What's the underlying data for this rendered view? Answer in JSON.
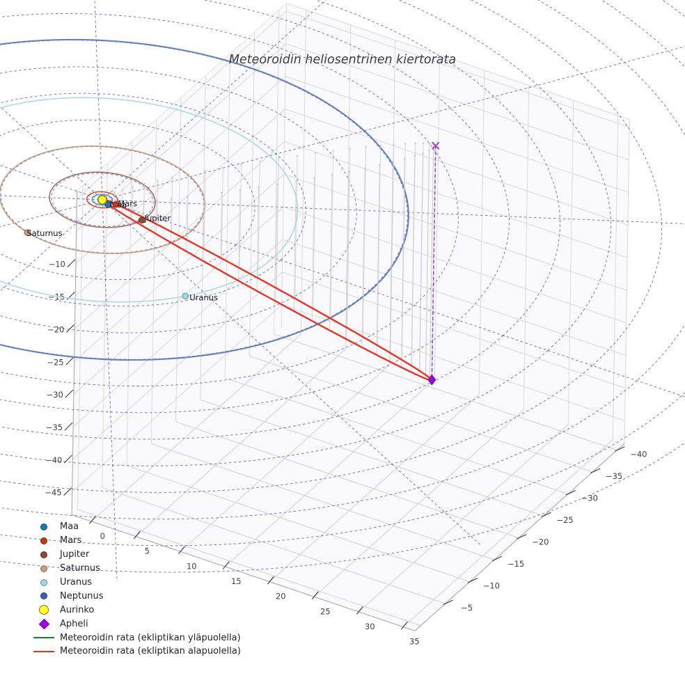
{
  "chart_data": {
    "type": "scatter",
    "projection": "3d",
    "title": "Meteoroidin heliosentrinen kiertorata",
    "axes": {
      "x_ticks": [
        0,
        5,
        10,
        15,
        20,
        25,
        30,
        35
      ],
      "y_ticks": [
        -5,
        -10,
        -15,
        -20,
        -25,
        -30,
        -35,
        -40
      ],
      "z_ticks": [
        -10,
        -15,
        -20,
        -25,
        -30,
        -35,
        -40,
        -45
      ],
      "tick_color": "#3d3d3d",
      "grid": "on"
    },
    "ecliptic_grid": {
      "style": "dashed",
      "line_color": "#4646cf",
      "radii_au": [
        5,
        10,
        15,
        20,
        25,
        30,
        35,
        40,
        45,
        50,
        55,
        60,
        65,
        70
      ],
      "ray_count": 12
    },
    "bodies": [
      {
        "name": "Maa",
        "label": "Maa",
        "label_visible": true,
        "orbit_radius_au": 1.0,
        "angle_deg": 28,
        "dot": "#1f77b4",
        "dot_edge": "#0e4a75",
        "orbit": "#4a8ec4"
      },
      {
        "name": "Mars",
        "label": "Mars",
        "label_visible": true,
        "orbit_radius_au": 1.52,
        "angle_deg": 1,
        "dot": "#bf3a1c",
        "dot_edge": "#7c2310",
        "orbit": "#cd4a2a"
      },
      {
        "name": "Jupiter",
        "label": "Jupiter",
        "label_visible": true,
        "orbit_radius_au": 5.2,
        "angle_deg": 13,
        "dot": "#8e4c38",
        "dot_edge": "#5a2d1f",
        "orbit": "#a2674e"
      },
      {
        "name": "Saturnus",
        "label": "Saturnus",
        "label_visible": true,
        "orbit_radius_au": 10.1,
        "angle_deg": 108,
        "dot": "#c49e80",
        "dot_edge": "#8a6950",
        "orbit": "#c49a78"
      },
      {
        "name": "Uranus",
        "label": "Uranus",
        "label_visible": true,
        "orbit_radius_au": 19.2,
        "angle_deg": 36,
        "dot": "#a5d5e5",
        "dot_edge": "#548fa9",
        "orbit": "#aad5e6"
      },
      {
        "name": "Neptunus",
        "label": "Neptunus",
        "label_visible": false,
        "orbit_radius_au": 30.1,
        "angle_deg": null,
        "dot": "#3e5fa9",
        "dot_edge": "#26407c",
        "orbit": "#5d7db9"
      }
    ],
    "sun": {
      "label": "Aurinko",
      "fill": "#ffff2e",
      "edge": "#7d7d20",
      "position_au": [
        0,
        0,
        0
      ]
    },
    "aphelion": {
      "label": "Apheli",
      "marker": "diamond",
      "fill": "#9c00e0",
      "edge": "#7a00b0",
      "position_au": {
        "x": 22.2,
        "y": -27.6,
        "z": -35.9
      },
      "projection_marker": "x",
      "projection_color": "#a44fc8",
      "drop_line_color": "#8d52c8",
      "drop_line_style": "dashed"
    },
    "meteoroid_orbit": {
      "eccentricity": 0.996,
      "above_label": "Meteoroidin rata (ekliptikan yläpuolella)",
      "below_label": "Meteoroidin rata (ekliptikan alapuolella)",
      "above_color": "#1a7f2e",
      "below_color": "#e43529",
      "stem_count": 56,
      "stem_color": "#c9c9c9"
    },
    "legend": [
      {
        "label": "Maa",
        "type": "dot",
        "fill": "#1f77b4",
        "edge": "#0e4a75"
      },
      {
        "label": "Mars",
        "type": "dot",
        "fill": "#bf3a1c",
        "edge": "#7c2310"
      },
      {
        "label": "Jupiter",
        "type": "dot",
        "fill": "#8e4c38",
        "edge": "#5a2d1f"
      },
      {
        "label": "Saturnus",
        "type": "dot",
        "fill": "#c49e80",
        "edge": "#8a6950"
      },
      {
        "label": "Uranus",
        "type": "dot",
        "fill": "#a5d5e5",
        "edge": "#548fa9"
      },
      {
        "label": "Neptunus",
        "type": "dot",
        "fill": "#3e5fa9",
        "edge": "#26407c"
      },
      {
        "label": "Aurinko",
        "type": "dot-large",
        "fill": "#ffff2e",
        "edge": "#7d7d20"
      },
      {
        "label": "Apheli",
        "type": "diamond",
        "fill": "#9c00e0",
        "edge": "#7a00b0"
      },
      {
        "label": "Meteoroidin rata (ekliptikan yläpuolella)",
        "type": "line",
        "fill": "#1a7f2e"
      },
      {
        "label": "Meteoroidin rata (ekliptikan alapuolella)",
        "type": "line",
        "fill": "#dc3028"
      }
    ]
  }
}
